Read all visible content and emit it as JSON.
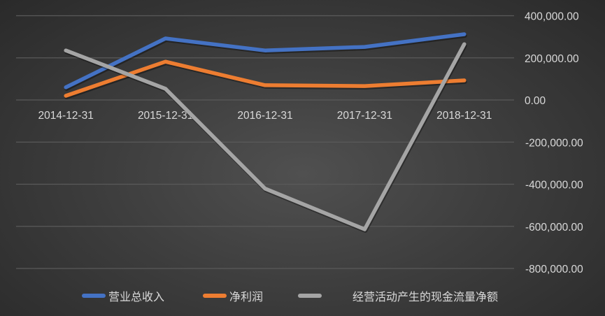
{
  "chart_data": {
    "type": "line",
    "title": "",
    "xlabel": "",
    "ylabel": "",
    "categories": [
      "2014-12-31",
      "2015-12-31",
      "2016-12-31",
      "2017-12-31",
      "2018-12-31"
    ],
    "series": [
      {
        "name": "营业总收入",
        "color": "#4472C4",
        "values": [
          60000,
          292000,
          235000,
          252000,
          312000
        ]
      },
      {
        "name": "净利润",
        "color": "#ED7D31",
        "values": [
          20000,
          182000,
          70000,
          66000,
          93000
        ]
      },
      {
        "name": "经营活动产生的现金流量净额",
        "color": "#A5A5A5",
        "values": [
          235000,
          53000,
          -421000,
          -614000,
          265000
        ]
      }
    ],
    "ylim": [
      -800000,
      400000
    ],
    "yticks": [
      "400,000.00",
      "200,000.00",
      "0.00",
      "-200,000.00",
      "-400,000.00",
      "-600,000.00",
      "-800,000.00"
    ],
    "ytick_values": [
      400000,
      200000,
      0,
      -200000,
      -400000,
      -600000,
      -800000
    ],
    "y_axis_position": "right",
    "grid": true,
    "legend_position": "bottom",
    "background": "#3a3a3a"
  },
  "legend": {
    "items": [
      {
        "label": "营业总收入",
        "color": "#4472C4"
      },
      {
        "label": "净利润",
        "color": "#ED7D31"
      },
      {
        "label": "经营活动产生的现金流量净额",
        "color": "#A5A5A5"
      }
    ]
  }
}
